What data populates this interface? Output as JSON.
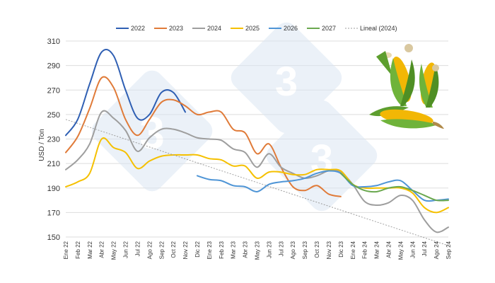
{
  "chart_data": {
    "type": "line",
    "xlabel": "",
    "ylabel": "USD / Ton",
    "ylim": [
      150,
      310
    ],
    "yticks": [
      150,
      170,
      190,
      210,
      230,
      250,
      270,
      290,
      310
    ],
    "grid": "horizontal",
    "legend_position": "top",
    "x_ticks": [
      "Ene 22",
      "Feb 22",
      "Mar 22",
      "Abr 22",
      "May 22",
      "Jun 22",
      "Jul 22",
      "Ago 22",
      "Sep 22",
      "Oct 22",
      "Nov 22",
      "Dic 22",
      "Ene 23",
      "Feb 23",
      "Mar 23",
      "Abr 23",
      "May 23",
      "Jun 23",
      "Jul 23",
      "Ago 23",
      "Sep 23",
      "Oct 23",
      "Nov 23",
      "Dic 23",
      "Ene 24",
      "Feb 24",
      "Mar 24",
      "Abr 24",
      "May 24",
      "Jun 24",
      "Jul 24",
      "Ago 24",
      "Sep 24"
    ],
    "series": [
      {
        "name": "2022",
        "color": "#2f5fb3",
        "start": 0,
        "values": [
          233,
          246,
          275,
          301,
          298,
          270,
          247,
          250,
          268,
          268,
          252
        ]
      },
      {
        "name": "2023",
        "color": "#e07b39",
        "start": 0,
        "values": [
          219,
          232,
          255,
          280,
          272,
          246,
          233,
          246,
          260,
          262,
          257,
          250,
          252,
          252,
          238,
          235,
          218,
          226,
          207,
          191,
          188,
          192,
          185,
          183
        ]
      },
      {
        "name": "2024",
        "color": "#9e9e9e",
        "start": 0,
        "values": [
          205,
          213,
          226,
          252,
          247,
          237,
          220,
          231,
          238,
          238,
          235,
          231,
          230,
          229,
          222,
          219,
          207,
          218,
          207,
          202,
          198,
          200,
          204,
          203,
          193,
          179,
          176,
          178,
          184,
          180,
          164,
          154,
          158
        ]
      },
      {
        "name": "2025",
        "color": "#f5c000",
        "start": 0,
        "values": [
          191,
          195,
          202,
          230,
          223,
          219,
          206,
          212,
          216,
          217,
          217,
          217,
          214,
          213,
          208,
          208,
          198,
          203,
          203,
          201,
          201,
          205,
          205,
          204,
          193,
          190,
          190,
          190,
          190,
          186,
          174,
          170,
          174
        ]
      },
      {
        "name": "2026",
        "color": "#4f95d6",
        "start": 11,
        "values": [
          200,
          197,
          196,
          192,
          191,
          187,
          193,
          195,
          196,
          198,
          202,
          204,
          202,
          192,
          191,
          192,
          195,
          196,
          188,
          180,
          180,
          181
        ]
      },
      {
        "name": "2027",
        "color": "#6aa84f",
        "start": 23,
        "values": [
          202,
          193,
          188,
          187,
          190,
          191,
          188,
          184,
          180,
          180
        ]
      },
      {
        "name": "Lineal (2024)",
        "color": "#9e9e9e",
        "dashed": true,
        "start": 0,
        "values": [
          246,
          143
        ]
      }
    ]
  }
}
